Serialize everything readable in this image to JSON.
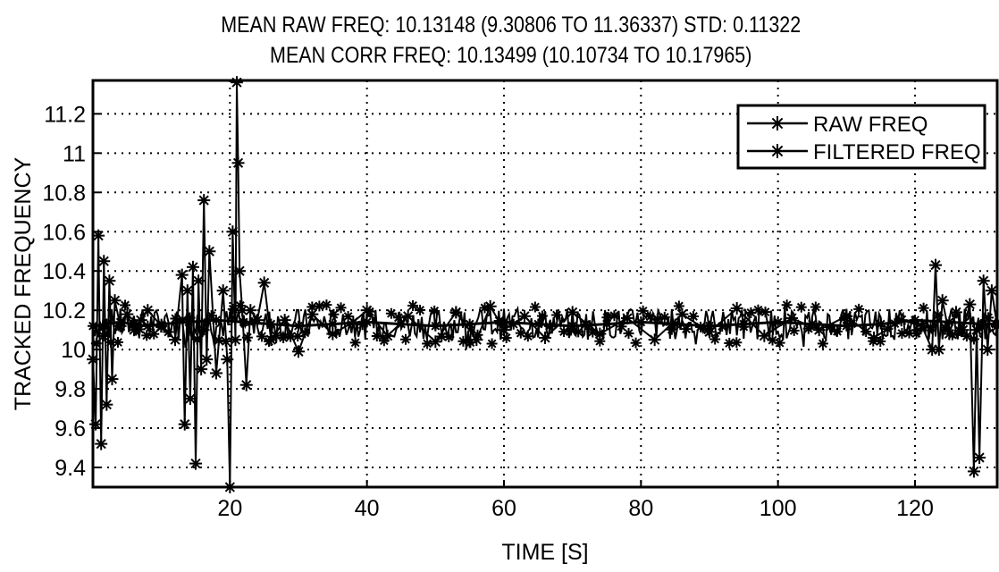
{
  "chart_data": {
    "type": "line",
    "title_lines": [
      "MEAN RAW FREQ:   10.13148 (9.30806 TO 11.36337) STD: 0.11322",
      "MEAN CORR FREQ: 10.13499 (10.10734 TO 10.17965)"
    ],
    "xlabel": "TIME [S]",
    "ylabel": "TRACKED FREQUENCY",
    "xlim": [
      0,
      132
    ],
    "ylim": [
      9.3,
      11.37
    ],
    "x_ticks": [
      20,
      40,
      60,
      80,
      100,
      120
    ],
    "x_tick_labels": [
      "20",
      "40",
      "60",
      "80",
      "100",
      "120"
    ],
    "y_ticks": [
      9.4,
      9.6,
      9.8,
      10,
      10.2,
      10.4,
      10.6,
      10.8,
      11,
      11.2
    ],
    "y_tick_labels": [
      "9.4",
      "9.6",
      "9.8",
      "10",
      "10.2",
      "10.4",
      "10.6",
      "10.8",
      "11",
      "11.2"
    ],
    "grid": true,
    "legend_position": "top-right",
    "marker": "asterisk",
    "series": [
      {
        "name": "RAW FREQ",
        "x": [
          0,
          0.4,
          0.8,
          1.2,
          1.6,
          2.0,
          2.4,
          2.8,
          3.2,
          4.0,
          5.0,
          6.0,
          7.0,
          8.0,
          10.0,
          12.0,
          13.0,
          13.4,
          13.8,
          14.2,
          14.6,
          15.0,
          15.4,
          15.8,
          16.2,
          16.6,
          17.0,
          18.0,
          19.0,
          19.6,
          20.0,
          20.4,
          20.8,
          21.0,
          21.2,
          21.4,
          21.8,
          22.4,
          23.0,
          24.0,
          25.0,
          26.0,
          28.0,
          30.0,
          32.0,
          35.0,
          38.0,
          40.0,
          43.0,
          46.0,
          50.0,
          53.0,
          56.0,
          58.0,
          60.0,
          63.0,
          66.0,
          70.0,
          74.0,
          78.0,
          82.0,
          86.0,
          90.0,
          94.0,
          98.0,
          102.0,
          106.0,
          110.0,
          114.0,
          118.0,
          121.0,
          122.5,
          123.0,
          123.5,
          124.0,
          125.0,
          126.0,
          127.0,
          128.0,
          128.6,
          129.0,
          129.4,
          130.0,
          130.6,
          131.2,
          132.0
        ],
        "y": [
          9.95,
          9.62,
          10.58,
          9.52,
          10.45,
          9.72,
          10.35,
          9.85,
          10.25,
          10.12,
          10.18,
          10.1,
          10.15,
          10.2,
          10.12,
          10.05,
          10.38,
          9.62,
          10.3,
          9.75,
          10.42,
          9.42,
          10.35,
          9.9,
          10.76,
          9.95,
          10.5,
          9.88,
          10.3,
          9.95,
          9.3,
          10.6,
          10.05,
          11.36,
          10.95,
          10.4,
          10.2,
          9.82,
          10.2,
          10.15,
          10.34,
          10.05,
          10.15,
          9.99,
          10.18,
          10.08,
          10.14,
          10.2,
          10.07,
          10.17,
          10.04,
          10.19,
          10.05,
          10.22,
          10.1,
          10.17,
          10.06,
          10.19,
          10.08,
          10.16,
          10.05,
          10.18,
          10.09,
          10.21,
          10.07,
          10.16,
          10.1,
          10.17,
          10.06,
          10.15,
          10.12,
          10.0,
          10.43,
          10.0,
          10.25,
          10.08,
          10.19,
          10.1,
          10.23,
          9.38,
          10.1,
          9.45,
          10.35,
          10.0,
          10.3,
          10.12
        ]
      },
      {
        "name": "FILTERED FREQ",
        "x": [
          0,
          2,
          4,
          6,
          8,
          10,
          14,
          18,
          22,
          26,
          30,
          35,
          40,
          45,
          50,
          55,
          60,
          65,
          70,
          75,
          80,
          85,
          90,
          95,
          100,
          105,
          110,
          115,
          120,
          125,
          130,
          132
        ],
        "y": [
          10.12,
          10.13,
          10.14,
          10.13,
          10.12,
          10.13,
          10.14,
          10.15,
          10.14,
          10.13,
          10.12,
          10.13,
          10.14,
          10.13,
          10.12,
          10.13,
          10.14,
          10.13,
          10.12,
          10.13,
          10.14,
          10.13,
          10.12,
          10.13,
          10.14,
          10.13,
          10.12,
          10.13,
          10.15,
          10.14,
          10.13,
          10.13
        ]
      }
    ]
  }
}
